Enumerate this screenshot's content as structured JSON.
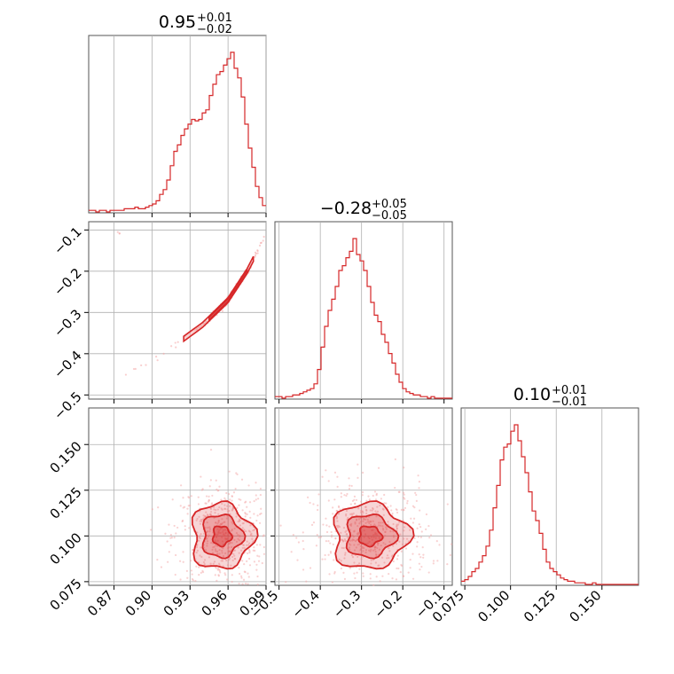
{
  "colors": {
    "main": "#d62728",
    "light": "#f4a6a6",
    "grid": "#b0b0b0"
  },
  "chart_data": [
    {
      "type": "histogram",
      "name": "p1",
      "title": {
        "median": "0.95",
        "plus": "+0.01",
        "minus": "−0.02"
      },
      "xlim": [
        0.85,
        0.99
      ],
      "bins": {
        "start": 0.85,
        "width": 0.0028,
        "counts": [
          1,
          1,
          0,
          1,
          1,
          0,
          1,
          1,
          1,
          1,
          2,
          2,
          2,
          3,
          2,
          2,
          3,
          4,
          5,
          7,
          11,
          14,
          20,
          29,
          38,
          42,
          48,
          52,
          55,
          58,
          57,
          58,
          62,
          64,
          73,
          80,
          86,
          88,
          92,
          96,
          100,
          90,
          84,
          72,
          55,
          40,
          28,
          16,
          9,
          4
        ]
      },
      "yscale_max": 100
    },
    {
      "type": "histogram",
      "name": "p2",
      "title": {
        "median": "−0.28",
        "plus": "+0.05",
        "minus": "−0.05"
      },
      "xlim": [
        -0.51,
        -0.08
      ],
      "bins": {
        "start": -0.51,
        "width": 0.0086,
        "counts": [
          1,
          1,
          0,
          1,
          1,
          2,
          2,
          3,
          4,
          5,
          6,
          9,
          18,
          32,
          45,
          55,
          62,
          70,
          80,
          83,
          88,
          92,
          100,
          90,
          86,
          80,
          70,
          60,
          52,
          48,
          40,
          35,
          28,
          22,
          15,
          10,
          6,
          4,
          3,
          2,
          2,
          1,
          1,
          0,
          1,
          0,
          0,
          0,
          0,
          0
        ]
      },
      "yscale_max": 100
    },
    {
      "type": "histogram",
      "name": "p3",
      "title": {
        "median": "0.10",
        "plus": "+0.01",
        "minus": "−0.01"
      },
      "xlim": [
        0.073,
        0.17
      ],
      "bins": {
        "start": 0.073,
        "width": 0.00194,
        "counts": [
          2,
          3,
          5,
          8,
          10,
          14,
          18,
          24,
          34,
          48,
          62,
          78,
          86,
          88,
          96,
          100,
          90,
          80,
          70,
          58,
          46,
          40,
          32,
          22,
          14,
          10,
          8,
          6,
          4,
          3,
          2,
          2,
          1,
          1,
          1,
          0,
          0,
          1,
          0,
          0,
          0,
          0,
          0,
          0,
          0,
          0,
          0,
          0,
          0,
          0
        ]
      },
      "yscale_max": 100
    },
    {
      "type": "contour-scatter",
      "name": "p2-vs-p1",
      "xlim": [
        0.85,
        0.99
      ],
      "ylim": [
        -0.51,
        -0.08
      ],
      "yticks": [
        "−0.1",
        "−0.2",
        "−0.3",
        "−0.4",
        "−0.5"
      ],
      "ytick_values": [
        -0.1,
        -0.2,
        -0.3,
        -0.4,
        -0.5
      ],
      "ridge": [
        [
          0.875,
          -0.46
        ],
        [
          0.9,
          -0.42
        ],
        [
          0.92,
          -0.375
        ],
        [
          0.94,
          -0.33
        ],
        [
          0.96,
          -0.27
        ],
        [
          0.975,
          -0.2
        ],
        [
          0.99,
          -0.11
        ]
      ],
      "density": {
        "center": [
          0.96,
          -0.27
        ],
        "sx": 0.012,
        "sy": 0.05
      }
    },
    {
      "type": "contour-scatter",
      "name": "p3-vs-p1",
      "xlim": [
        0.85,
        0.99
      ],
      "ylim": [
        0.073,
        0.17
      ],
      "xticks": [
        "0.87",
        "0.90",
        "0.93",
        "0.96",
        "0.99"
      ],
      "xtick_values": [
        0.87,
        0.9,
        0.93,
        0.96,
        0.99
      ],
      "yticks": [
        "0.150",
        "0.125",
        "0.100",
        "0.075"
      ],
      "ytick_values": [
        0.15,
        0.125,
        0.1,
        0.075
      ],
      "density": {
        "center": [
          0.955,
          0.1
        ],
        "sx": 0.012,
        "sy": 0.009
      }
    },
    {
      "type": "contour-scatter",
      "name": "p3-vs-p2",
      "xlim": [
        -0.51,
        -0.08
      ],
      "ylim": [
        0.073,
        0.17
      ],
      "xticks": [
        "−0.5",
        "−0.4",
        "−0.3",
        "−0.2",
        "−0.1"
      ],
      "xtick_values": [
        -0.5,
        -0.4,
        -0.3,
        -0.2,
        -0.1
      ],
      "density": {
        "center": [
          -0.28,
          0.1
        ],
        "sx": 0.045,
        "sy": 0.009
      }
    },
    {
      "type": "axis",
      "name": "p3-axis",
      "xlim": [
        0.073,
        0.17
      ],
      "xticks": [
        "0.075",
        "0.100",
        "0.125",
        "0.150"
      ],
      "xtick_values": [
        0.075,
        0.1,
        0.125,
        0.15
      ]
    }
  ]
}
